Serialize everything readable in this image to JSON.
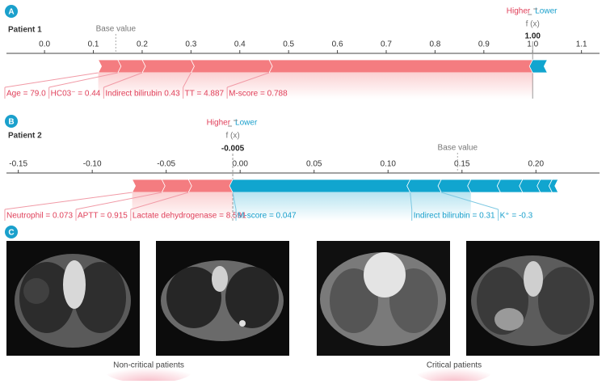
{
  "panels": [
    {
      "letter": "A",
      "title": "Patient 1",
      "higher": "Higher",
      "lower": "Lower",
      "fx_label": "f (x)",
      "fx": {
        "value": 1,
        "label": "1.00"
      },
      "base_label": "Base value",
      "base_value": 0.146,
      "xlim": [
        -0.078,
        1.137
      ],
      "xticks": [
        {
          "value": 0,
          "label": "0.0"
        },
        0.1,
        0.2,
        0.3,
        0.4,
        0.5,
        0.6,
        0.7,
        0.8,
        0.9,
        {
          "value": 1,
          "label": "1.0"
        },
        1.1
      ],
      "pos_color": "#f47c80",
      "neg_color": "#11a5cf",
      "positive": [
        {
          "label": "M-score = 0.788",
          "effect": 0.54
        },
        {
          "label": "TT = 4.887",
          "effect": 0.16
        },
        {
          "label": "Indirect bilirubin 0.43",
          "effect": 0.1
        },
        {
          "label": "HC03⁻ = 0.44",
          "effect": 0.05
        },
        {
          "label": "Age = 79.0",
          "effect": 0.04
        }
      ],
      "negative": [
        {
          "label": null,
          "effect": 0.03
        }
      ]
    },
    {
      "letter": "B",
      "title": "Patient 2",
      "higher": "Higher",
      "lower": "Lower",
      "fx_label": "f (x)",
      "fx": -0.005,
      "base_label": "Base value",
      "base_value": 0.147,
      "xlim": [
        -0.158,
        0.243
      ],
      "xticks": [
        -0.15,
        {
          "value": -0.1,
          "label": "-0.10"
        },
        -0.05,
        {
          "value": 0,
          "label": "0.00"
        },
        0.05,
        {
          "value": 0.1,
          "label": "0.10"
        },
        0.15,
        {
          "value": 0.2,
          "label": "0.20"
        }
      ],
      "pos_color": "#f47c80",
      "neg_color": "#11a5cf",
      "positive": [
        {
          "label": "Lactate dehydrogenase = 8.591",
          "effect": 0.03
        },
        {
          "label": "APTT = 0.915",
          "effect": 0.018
        },
        {
          "label": "Neutrophil = 0.073",
          "effect": 0.02
        }
      ],
      "negative": [
        {
          "label": "M-score = 0.047",
          "effect": 0.12
        },
        {
          "label": "Indirect bilirubin = 0.31",
          "effect": 0.021
        },
        {
          "label": "K⁺ = -0.3",
          "effect": 0.02
        },
        {
          "label": null,
          "effect": 0.02
        },
        {
          "label": null,
          "effect": 0.015
        },
        {
          "label": null,
          "effect": 0.012
        },
        {
          "label": null,
          "effect": 0.008
        },
        {
          "label": null,
          "effect": 0.004
        }
      ]
    }
  ],
  "panel_c": {
    "letter": "C",
    "groups": [
      "Non-critical patients",
      "Critical patients"
    ]
  }
}
